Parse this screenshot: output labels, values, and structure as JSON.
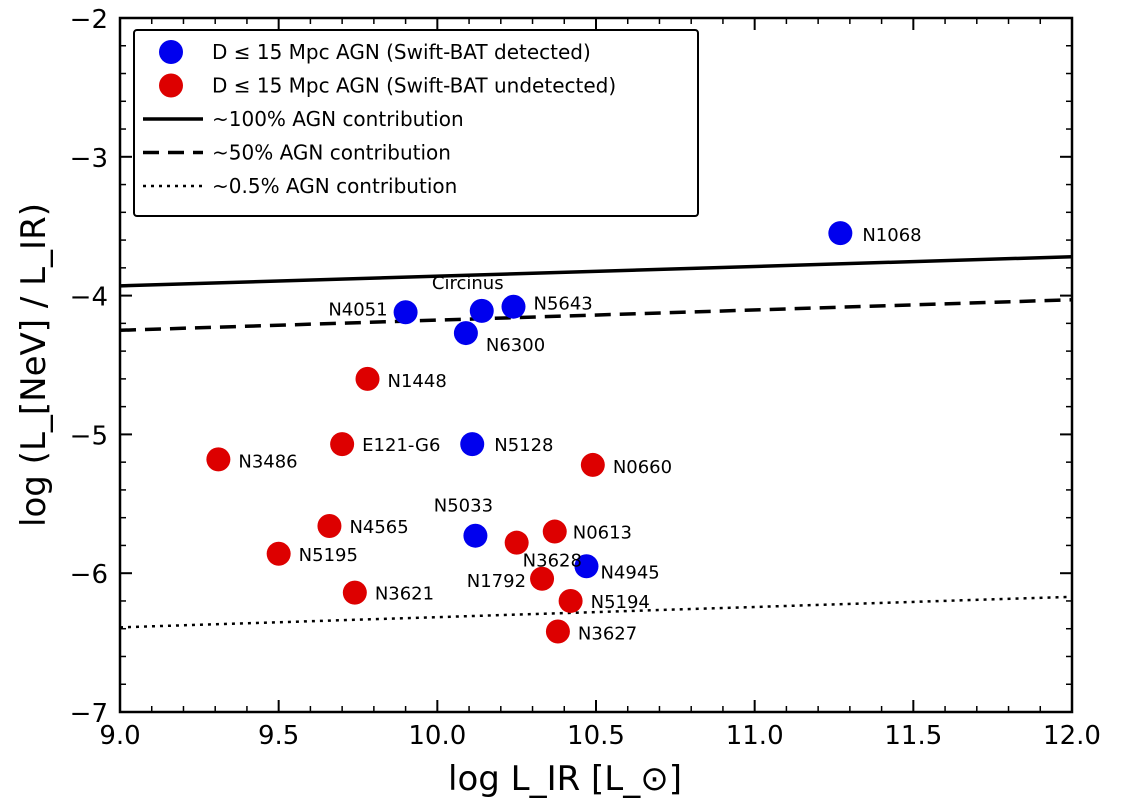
{
  "chart_data": {
    "type": "scatter",
    "xlabel": "log L_IR [L_⊙]",
    "ylabel": "log (L_[NeV] / L_IR)",
    "xlim": [
      9.0,
      12.0
    ],
    "ylim": [
      -7,
      -2
    ],
    "x_ticks": [
      9.0,
      9.5,
      10.0,
      10.5,
      11.0,
      11.5,
      12.0
    ],
    "x_tick_labels": [
      "9.0",
      "9.5",
      "10.0",
      "10.5",
      "11.0",
      "11.5",
      "12.0"
    ],
    "y_ticks": [
      -7,
      -6,
      -5,
      -4,
      -3,
      -2
    ],
    "y_tick_labels": [
      "−7",
      "−6",
      "−5",
      "−4",
      "−3",
      "−2"
    ],
    "grid": false,
    "legend_position": "top-left",
    "colors": {
      "detected": "#0000ee",
      "undetected": "#dd0000"
    },
    "series": [
      {
        "name": "D ≤ 15 Mpc AGN (Swift-BAT detected)",
        "kind": "points",
        "color": "#0000ee",
        "points": [
          {
            "x": 11.27,
            "y": -3.55,
            "label": "N1068"
          },
          {
            "x": 9.9,
            "y": -4.12,
            "label": "N4051"
          },
          {
            "x": 10.14,
            "y": -4.11,
            "label": "Circinus"
          },
          {
            "x": 10.24,
            "y": -4.08,
            "label": "N5643"
          },
          {
            "x": 10.09,
            "y": -4.27,
            "label": "N6300"
          },
          {
            "x": 10.11,
            "y": -5.07,
            "label": "N5128"
          },
          {
            "x": 10.12,
            "y": -5.73,
            "label": "N5033"
          },
          {
            "x": 10.47,
            "y": -5.95,
            "label": "N4945"
          }
        ]
      },
      {
        "name": "D ≤ 15 Mpc AGN (Swift-BAT undetected)",
        "kind": "points",
        "color": "#dd0000",
        "points": [
          {
            "x": 9.78,
            "y": -4.6,
            "label": "N1448"
          },
          {
            "x": 9.7,
            "y": -5.07,
            "label": "E121-G6"
          },
          {
            "x": 9.31,
            "y": -5.18,
            "label": "N3486"
          },
          {
            "x": 10.49,
            "y": -5.22,
            "label": "N0660"
          },
          {
            "x": 9.66,
            "y": -5.66,
            "label": "N4565"
          },
          {
            "x": 10.37,
            "y": -5.7,
            "label": "N0613"
          },
          {
            "x": 10.25,
            "y": -5.78,
            "label": "N3628"
          },
          {
            "x": 9.5,
            "y": -5.86,
            "label": "N5195"
          },
          {
            "x": 10.33,
            "y": -6.04,
            "label": "N1792"
          },
          {
            "x": 9.74,
            "y": -6.14,
            "label": "N3621"
          },
          {
            "x": 10.42,
            "y": -6.2,
            "label": "N5194"
          },
          {
            "x": 10.38,
            "y": -6.42,
            "label": "N3627"
          }
        ]
      },
      {
        "name": "~100% AGN contribution",
        "kind": "line",
        "style": "solid",
        "points": [
          {
            "x": 9.0,
            "y": -3.93
          },
          {
            "x": 12.0,
            "y": -3.72
          }
        ]
      },
      {
        "name": "~50% AGN contribution",
        "kind": "line",
        "style": "dashed",
        "points": [
          {
            "x": 9.0,
            "y": -4.25
          },
          {
            "x": 12.0,
            "y": -4.03
          }
        ]
      },
      {
        "name": "~0.5% AGN contribution",
        "kind": "line",
        "style": "dotted",
        "points": [
          {
            "x": 9.0,
            "y": -6.39
          },
          {
            "x": 12.0,
            "y": -6.17
          }
        ]
      }
    ],
    "legend": [
      {
        "marker": "circle",
        "color": "#0000ee",
        "label": "D ≤ 15 Mpc AGN (Swift-BAT detected)"
      },
      {
        "marker": "circle",
        "color": "#dd0000",
        "label": "D ≤ 15 Mpc AGN (Swift-BAT undetected)"
      },
      {
        "marker": "line",
        "style": "solid",
        "label": "~100% AGN contribution"
      },
      {
        "marker": "line",
        "style": "dashed",
        "label": "~50% AGN contribution"
      },
      {
        "marker": "line",
        "style": "dotted",
        "label": "~0.5% AGN contribution"
      }
    ]
  }
}
